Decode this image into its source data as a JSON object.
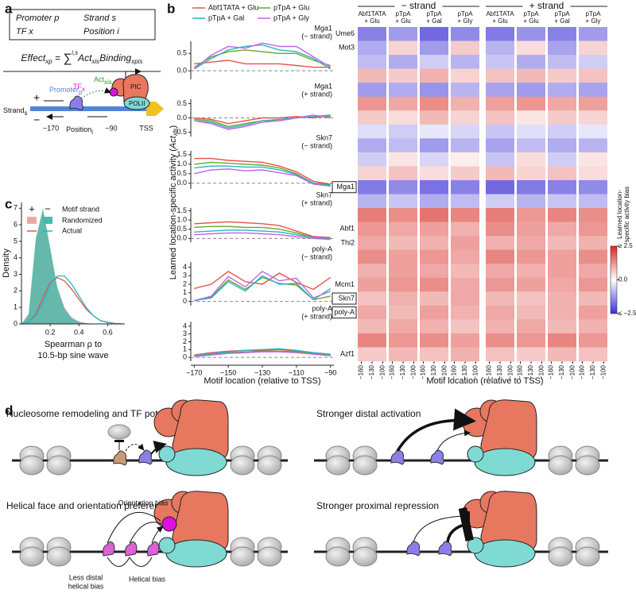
{
  "panel_labels": [
    "a",
    "b",
    "c",
    "d"
  ],
  "panel_a": {
    "box": {
      "promoter": "Promoter p",
      "tf": "TF x",
      "strand": "Strand s",
      "position": "Position i"
    },
    "equation": {
      "lhs": "Effect",
      "lhs_sub": "xp",
      "eq": " = ",
      "sum": "∑",
      "sum_sup": "i,s",
      "act": "Act",
      "act_sub": "xis",
      "binding": "Binding",
      "binding_sub": "xpis"
    },
    "diagram": {
      "promoter": {
        "text": "Promoter",
        "sub": "p"
      },
      "tf": {
        "text": "TF",
        "sub": "x"
      },
      "act": {
        "text": "Act",
        "sub": "xis"
      },
      "pic": "PIC",
      "polii": "POLII",
      "strand": {
        "text": "Strand",
        "sub": "s"
      },
      "plus": "+",
      "minus": "−",
      "left": "−170",
      "right": "−90",
      "tss": "TSS",
      "position": {
        "text": "Position",
        "sub": "i"
      }
    }
  },
  "chart_data": [
    {
      "type": "line",
      "series": [
        {
          "name": "Abf1TATA + Glu",
          "color": "#e8524a"
        },
        {
          "name": "pTpA + Glu",
          "color": "#6aa52c"
        },
        {
          "name": "pTpA + Gal",
          "color": "#25b7c6"
        },
        {
          "name": "pTpA + Gly",
          "color": "#c264e6"
        }
      ],
      "x": [
        -170,
        -160,
        -150,
        -140,
        -130,
        -120,
        -110,
        -100,
        -90
      ],
      "xlim": [
        -172,
        -88
      ],
      "xticks": [
        {
          "value": -170,
          "label": "−170"
        },
        {
          "value": -150,
          "label": "−150"
        },
        {
          "value": -130,
          "label": "−130"
        },
        {
          "value": -110,
          "label": "−110"
        },
        {
          "value": -90,
          "label": "−90"
        }
      ],
      "xlabel": "Motif location (relative to TSS)",
      "ylabel": [
        "Learned location-specific activity (",
        "Act",
        "xis",
        ")"
      ],
      "subplots": [
        {
          "title": "Mga1",
          "subtitle": "(− strand)",
          "ylim": [
            -0.25,
            0.85
          ],
          "yticks": [
            {
              "value": 0,
              "label": "0.0"
            },
            0.5
          ],
          "values": [
            [
              0.2,
              0.25,
              0.3,
              0.2,
              0.2,
              0.2,
              0.15,
              0.1,
              0.1
            ],
            [
              0.1,
              0.4,
              0.55,
              0.6,
              0.55,
              0.5,
              0.5,
              0.3,
              0.15
            ],
            [
              0.05,
              0.35,
              0.6,
              0.7,
              0.75,
              0.6,
              0.55,
              0.35,
              0.05
            ],
            [
              0.05,
              0.45,
              0.7,
              0.65,
              0.8,
              0.7,
              0.7,
              0.4,
              0.1
            ]
          ]
        },
        {
          "title": "Mga1",
          "subtitle": "(+ strand)",
          "ylim": [
            -0.65,
            0.65
          ],
          "yticks": [
            {
              "value": -0.5,
              "label": "−0.5"
            },
            {
              "value": 0,
              "label": "0.0"
            },
            0.5
          ],
          "values": [
            [
              0,
              -0.05,
              -0.2,
              -0.1,
              0,
              0,
              0.05,
              0,
              0.1
            ],
            [
              -0.05,
              -0.1,
              -0.3,
              -0.2,
              -0.1,
              -0.1,
              0,
              0.05,
              0.05
            ],
            [
              -0.1,
              -0.15,
              -0.35,
              -0.25,
              -0.1,
              -0.05,
              0,
              0.05,
              0.1
            ],
            [
              -0.1,
              -0.2,
              -0.4,
              -0.3,
              -0.15,
              -0.1,
              0,
              0.1,
              0
            ]
          ]
        },
        {
          "title": "Skn7",
          "subtitle": "(− strand)",
          "ylim": [
            -0.3,
            1.7
          ],
          "yticks": [
            {
              "value": 0,
              "label": "0.0"
            },
            0.5,
            {
              "value": 1,
              "label": "1.0"
            },
            1.5
          ],
          "values": [
            [
              1.3,
              1.3,
              1.2,
              1.15,
              1.1,
              0.9,
              0.6,
              0.1,
              -0.05
            ],
            [
              1.0,
              1.1,
              1.05,
              1.0,
              0.95,
              0.8,
              0.5,
              0.0,
              -0.05
            ],
            [
              0.8,
              0.9,
              0.9,
              0.85,
              0.85,
              0.7,
              0.45,
              0.0,
              -0.1
            ],
            [
              0.5,
              0.7,
              0.75,
              0.65,
              0.7,
              0.55,
              0.4,
              -0.05,
              -0.15
            ]
          ]
        },
        {
          "title": "Skn7",
          "subtitle": "(+ strand)",
          "ylim": [
            -0.2,
            1.65
          ],
          "yticks": [
            {
              "value": 0,
              "label": "0.0"
            },
            0.5,
            {
              "value": 1,
              "label": "1.0"
            },
            1.5
          ],
          "values": [
            [
              0.8,
              0.85,
              0.9,
              0.85,
              0.8,
              0.7,
              0.4,
              0.1,
              0.05
            ],
            [
              0.6,
              0.65,
              0.65,
              0.6,
              0.6,
              0.5,
              0.3,
              0.05,
              0.0
            ],
            [
              0.35,
              0.4,
              0.45,
              0.45,
              0.4,
              0.35,
              0.2,
              0.05,
              0.0
            ],
            [
              0.2,
              0.25,
              0.3,
              0.3,
              0.25,
              0.2,
              0.1,
              0.0,
              -0.05
            ]
          ]
        },
        {
          "title": "poly-A",
          "subtitle": "(− strand)",
          "ylim": [
            -0.5,
            4.6
          ],
          "yticks": [
            0,
            1,
            2,
            3,
            4
          ],
          "values": [
            [
              1.5,
              2.0,
              3.5,
              2.3,
              2.0,
              3.3,
              2.2,
              1.4,
              2.8
            ],
            [
              0.1,
              0.5,
              2.5,
              1.4,
              2.8,
              2.1,
              1.9,
              0.2,
              0.6
            ],
            [
              0.1,
              0.4,
              2.3,
              1.2,
              3.0,
              2.0,
              2.1,
              0.2,
              1.5
            ],
            [
              0.1,
              0.6,
              2.9,
              1.7,
              3.5,
              2.4,
              2.7,
              0.4,
              1.2
            ]
          ]
        },
        {
          "title": "poly-A",
          "subtitle": "(+ strand)",
          "ylim": [
            -0.5,
            4.6
          ],
          "yticks": [
            0,
            1,
            2,
            3,
            4
          ],
          "values": [
            [
              0.3,
              0.6,
              0.8,
              0.9,
              0.9,
              1.0,
              0.8,
              0.6,
              0.4
            ],
            [
              0.2,
              0.4,
              0.6,
              0.7,
              0.8,
              0.8,
              0.7,
              0.5,
              0.3
            ],
            [
              0.2,
              0.5,
              0.7,
              0.9,
              1.0,
              1.1,
              0.9,
              0.6,
              0.4
            ],
            [
              0.1,
              0.3,
              0.5,
              0.6,
              0.7,
              0.7,
              0.6,
              0.4,
              0.2
            ]
          ]
        }
      ]
    },
    {
      "type": "heatmap",
      "strand_groups": [
        "− strand",
        "+ strand"
      ],
      "columns": [
        {
          "line1": "Abf1TATA",
          "line2": "+ Glu"
        },
        {
          "line1": "pTpA",
          "line2": "+ Glu"
        },
        {
          "line1": "pTpA",
          "line2": "+ Gal"
        },
        {
          "line1": "pTpA",
          "line2": "+ Gly"
        },
        {
          "line1": "Abf1TATA",
          "line2": "+ Glu"
        },
        {
          "line1": "pTpA",
          "line2": "+ Glu"
        },
        {
          "line1": "pTpA",
          "line2": "+ Gal"
        },
        {
          "line1": "pTpA",
          "line2": "+ Gly"
        }
      ],
      "xlim": [
        -170,
        -90
      ],
      "xticks": [
        {
          "value": -160,
          "label": "−160"
        },
        {
          "value": -130,
          "label": "−130"
        },
        {
          "value": -100,
          "label": "−100"
        }
      ],
      "xlabel": "Motif location (relative to TSS)",
      "clim": [
        -2.5,
        2.5
      ],
      "cticks": [
        {
          "value": 2.5,
          "label": "≥ 2.5"
        },
        {
          "value": 0,
          "label": "0.0"
        },
        {
          "value": -2.5,
          "label": "≤ −2.5"
        }
      ],
      "clabel": [
        "Learned location-",
        "specific activity bias"
      ],
      "rows": [
        {
          "label": "Ume6",
          "values": [
            -1.5,
            -1.2,
            -1.8,
            -1.4,
            -1.6,
            -1.3,
            -1.5,
            -1.2
          ]
        },
        {
          "label": "Mot3",
          "values": [
            -1.0,
            0.5,
            -1.2,
            0.6,
            -0.9,
            0.4,
            -1.1,
            0.5
          ]
        },
        {
          "label": null,
          "values": [
            -0.8,
            -1.0,
            -0.6,
            -0.9,
            -0.7,
            -1.0,
            -0.8,
            -0.6
          ]
        },
        {
          "label": null,
          "values": [
            0.8,
            0.6,
            0.9,
            0.5,
            0.7,
            0.8,
            0.6,
            0.7
          ]
        },
        {
          "label": null,
          "values": [
            -1.2,
            -1.0,
            -1.3,
            -0.9,
            -1.1,
            -1.2,
            -1.0,
            -1.1
          ]
        },
        {
          "label": null,
          "values": [
            1.2,
            1.0,
            1.3,
            0.9,
            1.1,
            1.2,
            1.0,
            1.1
          ]
        },
        {
          "label": null,
          "values": [
            0.6,
            0.4,
            0.8,
            0.5,
            0.7,
            0.3,
            0.6,
            0.5
          ]
        },
        {
          "label": null,
          "values": [
            -0.4,
            -0.6,
            -0.3,
            -0.5,
            -0.7,
            -0.4,
            -0.6,
            -0.3
          ]
        },
        {
          "label": null,
          "values": [
            -1.0,
            -0.8,
            -1.2,
            -0.9,
            -1.1,
            -0.8,
            -1.0,
            -0.9
          ]
        },
        {
          "label": null,
          "values": [
            -0.6,
            0.3,
            -0.5,
            0.2,
            -0.7,
            0.4,
            -0.6,
            0.3
          ]
        },
        {
          "label": null,
          "values": [
            0.5,
            0.7,
            0.4,
            0.6,
            0.8,
            0.5,
            0.7,
            0.4
          ]
        },
        {
          "label": "Mga1",
          "boxed": true,
          "values": [
            -1.6,
            -1.4,
            -1.7,
            -1.5,
            -1.8,
            -1.6,
            -1.5,
            -1.4
          ]
        },
        {
          "label": null,
          "values": [
            -0.9,
            -0.7,
            -1.0,
            -0.8,
            -0.6,
            -0.9,
            -0.7,
            -0.8
          ]
        },
        {
          "label": null,
          "values": [
            1.5,
            1.3,
            1.6,
            1.4,
            1.5,
            1.2,
            1.4,
            1.3
          ]
        },
        {
          "label": "Abf1",
          "values": [
            1.2,
            1.0,
            1.1,
            0.9,
            1.3,
            1.1,
            1.0,
            1.2
          ]
        },
        {
          "label": "Thi2",
          "values": [
            1.0,
            0.8,
            0.9,
            1.1,
            0.9,
            1.0,
            0.8,
            0.9
          ]
        },
        {
          "label": null,
          "values": [
            1.3,
            1.1,
            1.2,
            1.0,
            1.4,
            1.2,
            1.1,
            1.3
          ]
        },
        {
          "label": null,
          "values": [
            0.9,
            1.1,
            1.0,
            0.8,
            1.0,
            0.9,
            1.1,
            1.0
          ]
        },
        {
          "label": "Mcm1",
          "values": [
            1.1,
            1.2,
            1.3,
            1.0,
            1.2,
            1.1,
            1.0,
            1.2
          ]
        },
        {
          "label": "Skn7",
          "boxed": true,
          "values": [
            0.7,
            0.9,
            0.8,
            1.0,
            0.8,
            0.7,
            0.9,
            0.8
          ]
        },
        {
          "label": "poly-A",
          "boxed": true,
          "values": [
            1.0,
            0.8,
            1.1,
            0.9,
            1.0,
            0.8,
            0.9,
            1.1
          ]
        },
        {
          "label": null,
          "values": [
            0.8,
            1.0,
            0.9,
            0.7,
            0.9,
            1.0,
            0.8,
            0.9
          ]
        },
        {
          "label": null,
          "values": [
            1.4,
            1.2,
            1.3,
            1.1,
            1.3,
            1.2,
            1.4,
            1.2
          ]
        },
        {
          "label": "Azf1",
          "values": [
            0.6,
            0.8,
            0.7,
            0.9,
            0.7,
            0.6,
            0.8,
            0.7
          ]
        }
      ]
    },
    {
      "type": "density",
      "legend": {
        "strand_plus": "+",
        "strand_minus": "−",
        "strand_title": "Motif strand",
        "randomized": "Randomized",
        "actual": "Actual"
      },
      "x": [
        0,
        0.05,
        0.1,
        0.15,
        0.2,
        0.25,
        0.3,
        0.35,
        0.4,
        0.45,
        0.5,
        0.55,
        0.6,
        0.65,
        0.7
      ],
      "xlim": [
        0,
        0.72
      ],
      "xticks": [
        0.2,
        0.4,
        0.6
      ],
      "ylim": [
        0,
        7.35
      ],
      "yticks": [
        0,
        1,
        2,
        3,
        4,
        5,
        6,
        7
      ],
      "ylabel": "Density",
      "xlabel": [
        "Spearman ρ to",
        "10.5-bp sine wave"
      ],
      "series": [
        {
          "name": "Randomized +",
          "kind": "area",
          "color": "#f4a6a6",
          "values": [
            0,
            0.5,
            5.0,
            6.8,
            4.5,
            2.2,
            1.0,
            0.4,
            0.15,
            0.05,
            0.02,
            0,
            0,
            0,
            0
          ]
        },
        {
          "name": "Randomized −",
          "kind": "area",
          "color": "#4bb8a9",
          "values": [
            0,
            0.6,
            5.2,
            7.0,
            4.6,
            2.2,
            0.9,
            0.35,
            0.12,
            0.04,
            0.01,
            0,
            0,
            0,
            0
          ]
        },
        {
          "name": "Actual +",
          "kind": "line",
          "color": "#e8524a",
          "values": [
            0,
            0.1,
            0.6,
            1.6,
            2.5,
            2.8,
            2.6,
            2.1,
            1.5,
            0.9,
            0.5,
            0.2,
            0.1,
            0.03,
            0
          ]
        },
        {
          "name": "Actual −",
          "kind": "line",
          "color": "#25b7c6",
          "values": [
            0,
            0.1,
            0.5,
            1.3,
            2.4,
            2.9,
            2.9,
            2.4,
            1.7,
            1.0,
            0.5,
            0.2,
            0.08,
            0.02,
            0
          ]
        }
      ]
    }
  ],
  "panel_d": {
    "titles": [
      "Nucleosome remodeling and TF potentiation",
      "Stronger distal activation",
      "Helical face and orientation preferences",
      "Stronger proximal repression"
    ],
    "annotations": {
      "orientation_bias": "Orientation bias",
      "less_distal": [
        "Less distal",
        "helical bias"
      ],
      "helical_bias": "Helical bias"
    }
  }
}
